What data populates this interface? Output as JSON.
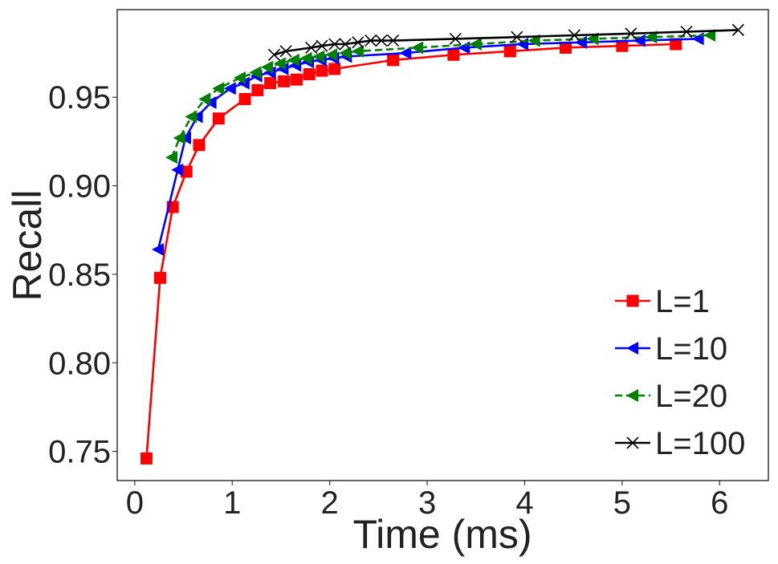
{
  "chart_data": {
    "type": "line",
    "title": "",
    "xlabel": "Time (ms)",
    "ylabel": "Recall",
    "xlim": [
      -0.18,
      6.5
    ],
    "ylim": [
      0.7335,
      0.9995
    ],
    "xticks": [
      0,
      1,
      2,
      3,
      4,
      5,
      6
    ],
    "xtick_labels": [
      "0",
      "1",
      "2",
      "3",
      "4",
      "5",
      "6"
    ],
    "yticks": [
      0.75,
      0.8,
      0.85,
      0.9,
      0.95
    ],
    "ytick_labels": [
      "0.75",
      "0.80",
      "0.85",
      "0.90",
      "0.95"
    ],
    "grid": false,
    "legend_position": "lower-right",
    "series": [
      {
        "name": "L=1",
        "color": "#ff0000",
        "marker": "square",
        "linestyle": "solid",
        "x": [
          0.12,
          0.26,
          0.39,
          0.53,
          0.66,
          0.86,
          1.13,
          1.26,
          1.39,
          1.53,
          1.66,
          1.79,
          1.92,
          2.05,
          2.65,
          3.27,
          3.85,
          4.42,
          5.0,
          5.55
        ],
        "y": [
          0.746,
          0.848,
          0.888,
          0.908,
          0.923,
          0.938,
          0.949,
          0.954,
          0.958,
          0.959,
          0.96,
          0.963,
          0.965,
          0.966,
          0.971,
          0.974,
          0.976,
          0.978,
          0.979,
          0.98
        ]
      },
      {
        "name": "L=10",
        "color": "#0000ff",
        "marker": "triangle-left",
        "linestyle": "solid",
        "x": [
          0.24,
          0.44,
          0.52,
          0.64,
          0.78,
          0.98,
          1.12,
          1.25,
          1.39,
          1.52,
          1.65,
          1.78,
          1.91,
          2.04,
          2.17,
          2.78,
          3.38,
          3.98,
          4.58,
          5.18,
          5.78
        ],
        "y": [
          0.864,
          0.909,
          0.927,
          0.939,
          0.947,
          0.955,
          0.958,
          0.962,
          0.964,
          0.966,
          0.968,
          0.97,
          0.971,
          0.972,
          0.973,
          0.975,
          0.978,
          0.98,
          0.981,
          0.982,
          0.983
        ]
      },
      {
        "name": "L=20",
        "color": "#008000",
        "marker": "triangle-left",
        "linestyle": "dashed",
        "x": [
          0.38,
          0.46,
          0.58,
          0.72,
          0.86,
          1.08,
          1.24,
          1.36,
          1.49,
          1.63,
          1.76,
          1.89,
          2.02,
          2.16,
          2.29,
          2.9,
          3.5,
          4.1,
          4.7,
          5.3,
          5.9
        ],
        "y": [
          0.916,
          0.927,
          0.939,
          0.949,
          0.955,
          0.961,
          0.964,
          0.967,
          0.969,
          0.971,
          0.972,
          0.973,
          0.974,
          0.975,
          0.976,
          0.978,
          0.98,
          0.982,
          0.983,
          0.984,
          0.985
        ]
      },
      {
        "name": "L=100",
        "color": "#000000",
        "marker": "x",
        "linestyle": "solid",
        "x": [
          1.43,
          1.55,
          1.81,
          1.92,
          2.05,
          2.16,
          2.29,
          2.42,
          2.53,
          2.65,
          3.29,
          3.92,
          4.51,
          5.09,
          5.66,
          6.19
        ],
        "y": [
          0.974,
          0.976,
          0.978,
          0.979,
          0.98,
          0.98,
          0.981,
          0.982,
          0.982,
          0.982,
          0.983,
          0.984,
          0.985,
          0.986,
          0.987,
          0.988
        ]
      }
    ]
  }
}
